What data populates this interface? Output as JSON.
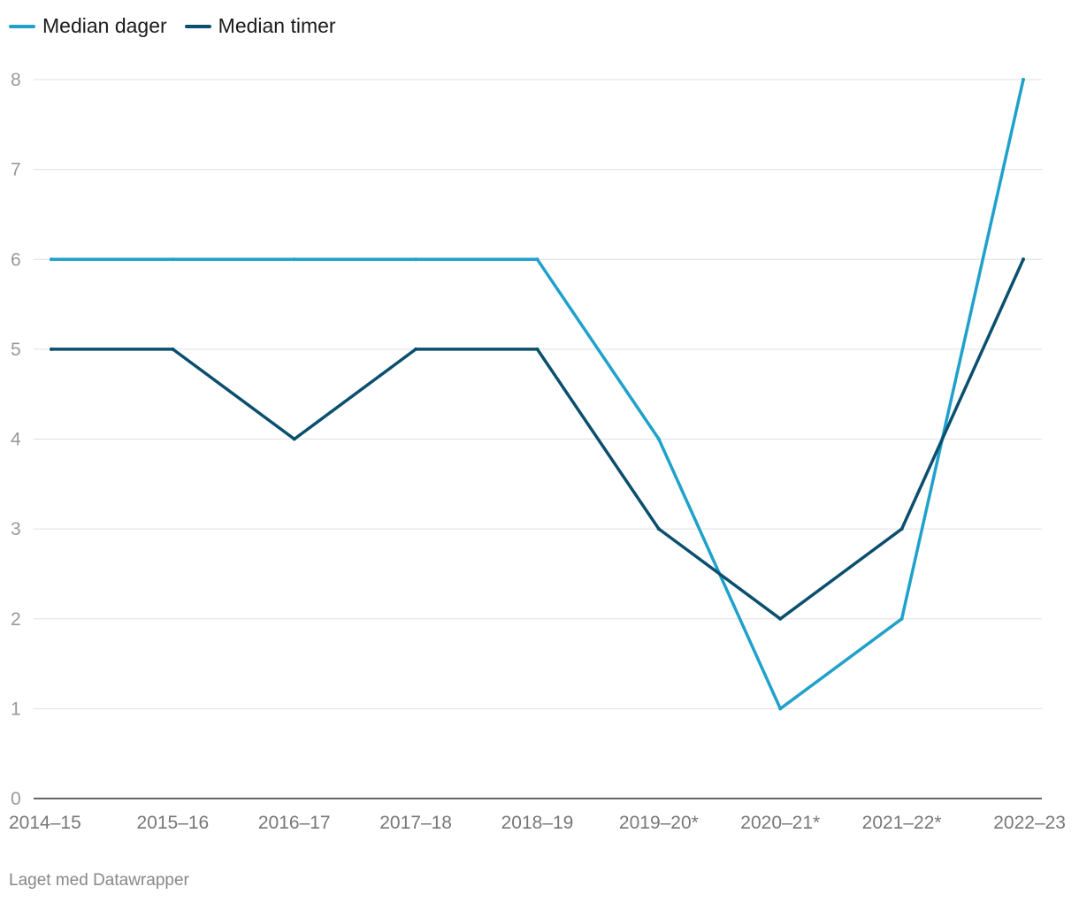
{
  "credit": "Laget med Datawrapper",
  "chart_data": {
    "type": "line",
    "title": "",
    "xlabel": "",
    "ylabel": "",
    "categories": [
      "2014–15",
      "2015–16",
      "2016–17",
      "2017–18",
      "2018–19",
      "2019–20*",
      "2020–21*",
      "2021–22*",
      "2022–23"
    ],
    "series": [
      {
        "name": "Median dager",
        "color": "#1fa1cb",
        "values": [
          6,
          6,
          6,
          6,
          6,
          4,
          1,
          2,
          8
        ]
      },
      {
        "name": "Median timer",
        "color": "#0a4f6e",
        "values": [
          5,
          5,
          4,
          5,
          5,
          3,
          2,
          3,
          6
        ]
      }
    ],
    "ylim": [
      0,
      8
    ],
    "yticks": [
      0,
      1,
      2,
      3,
      4,
      5,
      6,
      7,
      8
    ],
    "grid": true,
    "legend_position": "top-left"
  }
}
